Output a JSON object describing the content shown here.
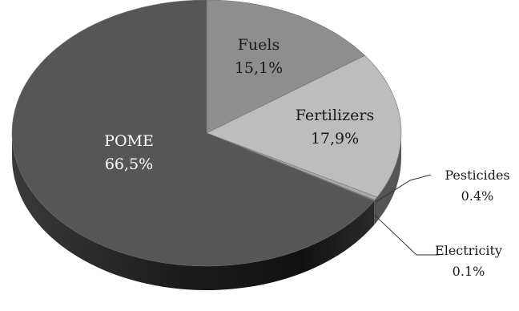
{
  "chart_data": {
    "type": "pie",
    "title": "",
    "style": "3d",
    "start": "top, clockwise",
    "slices": [
      {
        "name": "Fuels",
        "value_label": "15,1%",
        "value": 15.1,
        "color": "#8e8e8e"
      },
      {
        "name": "Fertilizers",
        "value_label": "17,9%",
        "value": 17.9,
        "color": "#bdbdbd"
      },
      {
        "name": "Pesticides",
        "value_label": "0.4%",
        "value": 0.4,
        "color": "#aaaaaa"
      },
      {
        "name": "Electricity",
        "value_label": "0.1%",
        "value": 0.1,
        "color": "#9a9a9a"
      },
      {
        "name": "POME",
        "value_label": "66,5%",
        "value": 66.5,
        "color": "#565656"
      }
    ]
  }
}
